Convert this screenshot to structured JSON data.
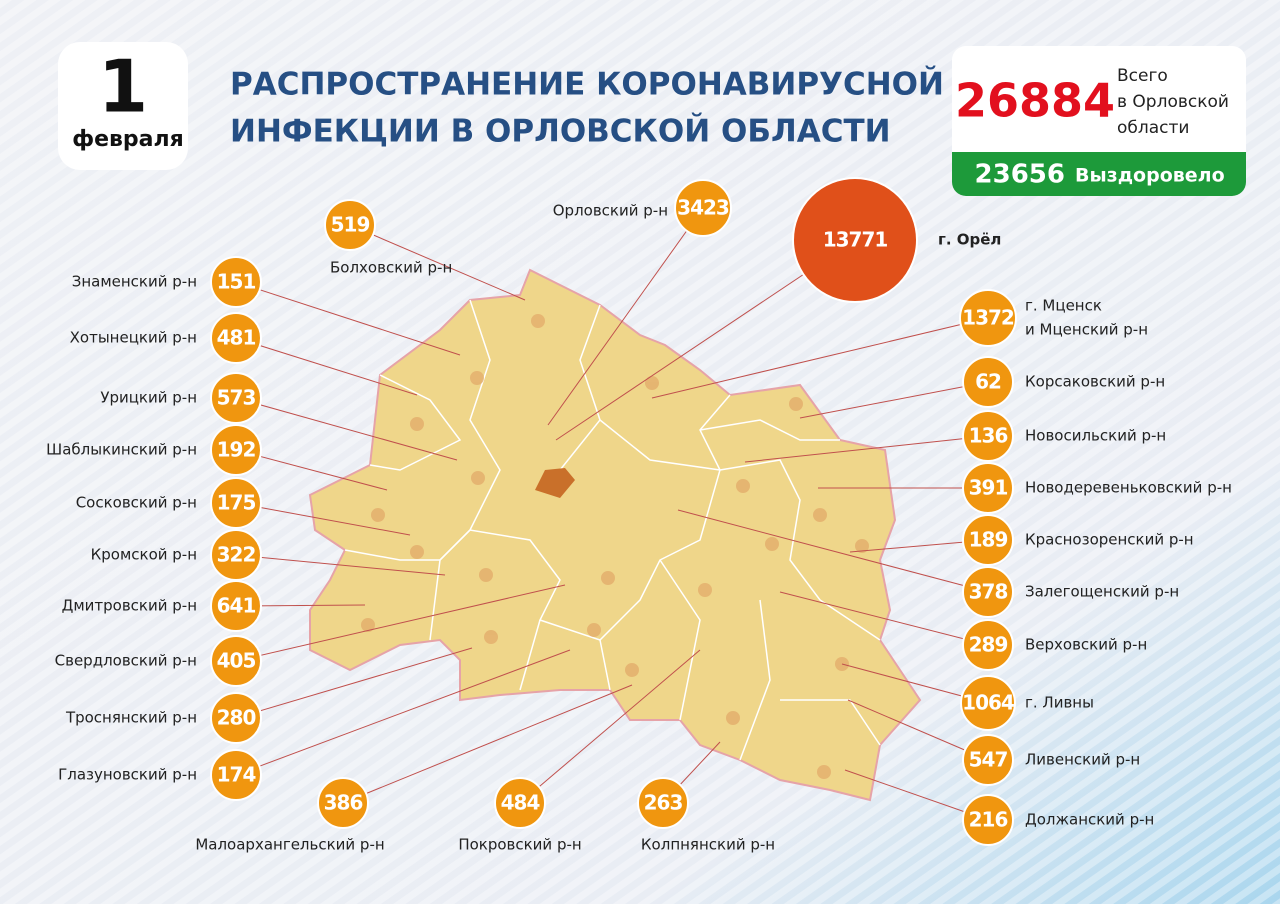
{
  "date": {
    "day": "1",
    "month": "февраля"
  },
  "title": [
    "РАСПРОСТРАНЕНИЕ КОРОНАВИРУСНОЙ",
    "ИНФЕКЦИИ В ОРЛОВСКОЙ ОБЛАСТИ"
  ],
  "totals": {
    "total": 26884,
    "total_label": [
      "Всего",
      "в Орловской",
      "области"
    ],
    "recovered": 23656,
    "recovered_label": "Выздоровело"
  },
  "regions": [
    {
      "name": "Знаменский р-н",
      "cases": 151
    },
    {
      "name": "Хотынецкий р-н",
      "cases": 481
    },
    {
      "name": "Урицкий р-н",
      "cases": 573
    },
    {
      "name": "Шаблыкинский р-н",
      "cases": 192
    },
    {
      "name": "Сосковский р-н",
      "cases": 175
    },
    {
      "name": "Кромской р-н",
      "cases": 322
    },
    {
      "name": "Дмитровский р-н",
      "cases": 641
    },
    {
      "name": "Свердловский р-н",
      "cases": 405
    },
    {
      "name": "Троснянский р-н",
      "cases": 280
    },
    {
      "name": "Глазуновский р-н",
      "cases": 174
    },
    {
      "name": "Болховский р-н",
      "cases": 519
    },
    {
      "name": "Орловский р-н",
      "cases": 3423
    },
    {
      "name": "г. Орёл",
      "cases": 13771
    },
    {
      "name": [
        "г. Мценск",
        "и Мценский р-н"
      ],
      "cases": 1372
    },
    {
      "name": "Корсаковский р-н",
      "cases": 62
    },
    {
      "name": "Новосильский р-н",
      "cases": 136
    },
    {
      "name": "Новодеревеньковский р-н",
      "cases": 391
    },
    {
      "name": "Краснозоренский р-н",
      "cases": 189
    },
    {
      "name": "Залегощенский р-н",
      "cases": 378
    },
    {
      "name": "Верховский р-н",
      "cases": 289
    },
    {
      "name": "г. Ливны",
      "cases": 1064
    },
    {
      "name": "Ливенский р-н",
      "cases": 547
    },
    {
      "name": "Должанский р-н",
      "cases": 216
    },
    {
      "name": "Малоархангельский р-н",
      "cases": 386
    },
    {
      "name": "Покровский р-н",
      "cases": 484
    },
    {
      "name": "Колпнянский р-н",
      "cases": 263
    }
  ]
}
